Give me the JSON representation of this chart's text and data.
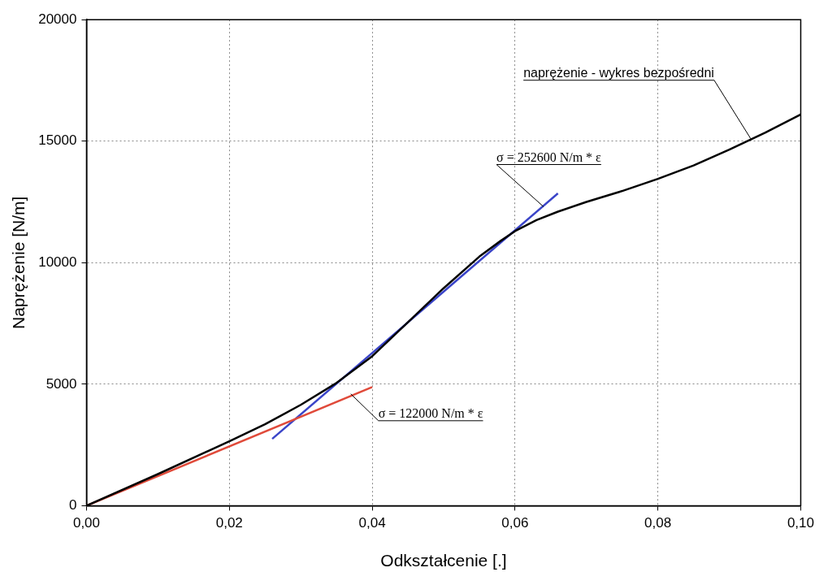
{
  "chart_data": {
    "type": "line",
    "xlabel": "Odkształcenie [.]",
    "ylabel": "Naprężenie [N/m]",
    "xlim": [
      0,
      0.1
    ],
    "ylim": [
      0,
      20000
    ],
    "xticks": [
      {
        "value": 0,
        "label": "0,00"
      },
      {
        "value": 0.02,
        "label": "0,02"
      },
      {
        "value": 0.04,
        "label": "0,04"
      },
      {
        "value": 0.06,
        "label": "0,06"
      },
      {
        "value": 0.08,
        "label": "0,08"
      },
      {
        "value": 0.1,
        "label": "0,10"
      }
    ],
    "yticks": [
      0,
      5000,
      10000,
      15000,
      20000
    ],
    "grid": true,
    "legend": false,
    "marker": "none",
    "line_style": "solid",
    "series": [
      {
        "color": "#000000",
        "x": [
          0,
          0.01,
          0.02,
          0.025,
          0.03,
          0.035,
          0.04,
          0.045,
          0.05,
          0.055,
          0.058,
          0.06,
          0.063,
          0.066,
          0.07,
          0.075,
          0.08,
          0.085,
          0.09,
          0.095,
          0.1
        ],
        "values": [
          0,
          1300,
          2650,
          3350,
          4150,
          5050,
          6150,
          7550,
          8950,
          10250,
          10900,
          11300,
          11750,
          12100,
          12500,
          12950,
          13450,
          14000,
          14650,
          15350,
          16100
        ]
      },
      {
        "color": "#e04a3a",
        "x": [
          0,
          0.04
        ],
        "values": [
          0,
          4880
        ]
      },
      {
        "color": "#3a44c8",
        "x": [
          0.026,
          0.066
        ],
        "values": [
          2750,
          12850
        ]
      }
    ],
    "annotations": [
      {
        "text": "naprężenie - wykres bezpośredni",
        "x": 0.093,
        "y": 15100
      },
      {
        "text": "σ = 252600 N/m * ε",
        "x": 0.064,
        "y": 12300
      },
      {
        "text": "σ = 122000 N/m * ε",
        "x": 0.037,
        "y": 4600
      }
    ]
  }
}
